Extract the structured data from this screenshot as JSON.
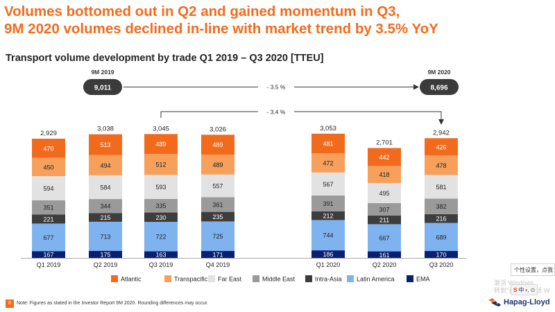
{
  "page": {
    "headline_line1": "Volumes bottomed out in Q2 and gained momentum in Q3,",
    "headline_line2": "9M 2020 volumes declined in-line with market trend by 3.5% YoY",
    "footer_page": "8",
    "footnote": "Note: Figures as stated in the Investor Report 9M 2020. Rounding differences may occur.",
    "logo_text": "Hapag-Lloyd",
    "overlay": {
      "window_text": "个性设置，点我",
      "watermark_line1": "激活 Windows",
      "watermark_line2": "转到\"设置\"以激活 W",
      "ime_lang": "中",
      "ime_extra": "•, ⊙"
    }
  },
  "chart_data": {
    "type": "bar",
    "stacked": true,
    "title": "Transport volume development by trade Q1 2019 – Q3 2020 [TTEU]",
    "categories": [
      "Q1 2019",
      "Q2 2019",
      "Q3 2019",
      "Q4 2019",
      "Q1 2020",
      "Q2 2020",
      "Q3 2020"
    ],
    "totals": [
      2929,
      3038,
      3045,
      3026,
      3053,
      2701,
      2942
    ],
    "totals_labels": [
      "2,929",
      "3,038",
      "3,045",
      "3,026",
      "3,053",
      "2,701",
      "2,942"
    ],
    "series": [
      {
        "name": "EMA",
        "color": "#0a1f6e",
        "values": [
          167,
          175,
          163,
          171,
          186,
          161,
          170
        ]
      },
      {
        "name": "Latin America",
        "color": "#7fb3f0",
        "values": [
          677,
          713,
          722,
          725,
          744,
          667,
          689
        ]
      },
      {
        "name": "Intra-Asia",
        "color": "#3d3d3d",
        "values": [
          221,
          215,
          230,
          235,
          212,
          211,
          216
        ]
      },
      {
        "name": "Middle East",
        "color": "#9a9a9a",
        "values": [
          351,
          344,
          335,
          361,
          391,
          307,
          382
        ]
      },
      {
        "name": "Far East",
        "color": "#e2e2e2",
        "values": [
          594,
          584,
          593,
          557,
          567,
          495,
          581
        ]
      },
      {
        "name": "Transpacific",
        "color": "#f6a05c",
        "values": [
          450,
          494,
          512,
          489,
          472,
          418,
          478
        ]
      },
      {
        "name": "Atlantic",
        "color": "#f26b1d",
        "values": [
          470,
          513,
          489,
          489,
          481,
          442,
          426
        ]
      }
    ],
    "legend_order": [
      "Atlantic",
      "Transpacific",
      "Far East",
      "Middle East",
      "Intra-Asia",
      "Latin America",
      "EMA"
    ],
    "legend_position": "bottom",
    "grid": false,
    "ylim": [
      0,
      3600
    ],
    "annotations": {
      "nine_month_2019": {
        "label": "9M 2019",
        "value": "9,011"
      },
      "nine_month_2020": {
        "label": "9M 2020",
        "value": "8,696"
      },
      "change_9m": "- 3.5 %",
      "change_q3": "- 3.4 %"
    }
  }
}
